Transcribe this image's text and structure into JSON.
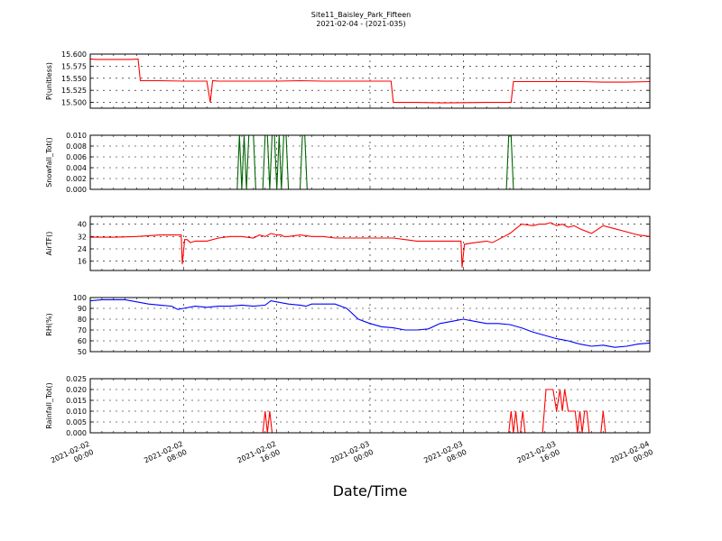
{
  "figure": {
    "title": "Site11_Baisley_Park_Fifteen",
    "subtitle": "2021-02-04 - (2021-035)",
    "xlabel": "Date/Time"
  },
  "chart_data": [
    {
      "type": "line",
      "ylabel": "P(unitless)",
      "ylim": [
        15.488,
        15.6
      ],
      "yticks": [
        "15.600",
        "15.575",
        "15.550",
        "15.525",
        "15.500"
      ],
      "ytick_values": [
        15.6,
        15.575,
        15.55,
        15.525,
        15.5
      ],
      "xlim": [
        0,
        48
      ],
      "grid": true,
      "series": [
        {
          "color": "#ff0000",
          "x": [
            0,
            0.5,
            2,
            3.5,
            4.1,
            4.3,
            6,
            8,
            10,
            10.3,
            10.5,
            11,
            13,
            16,
            18,
            20,
            24,
            25.8,
            26,
            28,
            30,
            34,
            36,
            36.1,
            36.3,
            40,
            42,
            44,
            46,
            48
          ],
          "y": [
            15.59,
            15.589,
            15.589,
            15.589,
            15.59,
            15.545,
            15.545,
            15.544,
            15.544,
            15.5,
            15.545,
            15.544,
            15.544,
            15.544,
            15.545,
            15.544,
            15.544,
            15.544,
            15.5,
            15.5,
            15.499,
            15.5,
            15.5,
            15.5,
            15.543,
            15.543,
            15.543,
            15.542,
            15.542,
            15.543
          ]
        }
      ]
    },
    {
      "type": "line",
      "ylabel": "Snowfall_Tot()",
      "ylim": [
        0,
        0.01
      ],
      "yticks": [
        "0.010",
        "0.008",
        "0.006",
        "0.004",
        "0.002",
        "0.000"
      ],
      "ytick_values": [
        0.01,
        0.008,
        0.006,
        0.004,
        0.002,
        0
      ],
      "xlim": [
        0,
        48
      ],
      "grid": true,
      "series": [
        {
          "color": "#006400",
          "x": [
            0,
            12.6,
            12.8,
            13.0,
            13.2,
            13.4,
            13.6,
            13.8,
            14.0,
            14.2,
            14.4,
            14.6,
            14.8,
            15.0,
            15.2,
            15.4,
            15.6,
            15.8,
            16.0,
            16.2,
            16.4,
            16.6,
            16.8,
            17.0,
            17.2,
            17.4,
            17.6,
            17.8,
            18.0,
            18.2,
            18.4,
            18.6,
            18.8,
            35.7,
            35.9,
            36.1,
            36.3,
            48
          ],
          "y": [
            0,
            0,
            0.01,
            0,
            0.01,
            0,
            0.01,
            0.01,
            0.01,
            0,
            0,
            0,
            0,
            0.01,
            0.01,
            0,
            0.01,
            0.01,
            0,
            0.01,
            0,
            0.01,
            0.01,
            0,
            0,
            0,
            0,
            0,
            0,
            0.01,
            0.01,
            0,
            0,
            0,
            0.01,
            0.01,
            0,
            0
          ]
        }
      ]
    },
    {
      "type": "line",
      "ylabel": "AirTF()",
      "ylim": [
        10,
        45
      ],
      "yticks": [
        "40",
        "32",
        "24",
        "16"
      ],
      "ytick_values": [
        40,
        32,
        24,
        16
      ],
      "xlim": [
        0,
        48
      ],
      "grid": true,
      "series": [
        {
          "color": "#ff0000",
          "x": [
            0,
            2,
            4,
            6,
            7.8,
            7.9,
            8.1,
            8.3,
            8.6,
            9,
            9.5,
            10,
            11,
            12,
            13,
            14,
            14.5,
            15,
            15.5,
            16,
            16.4,
            16.6,
            17,
            18,
            19,
            20,
            21,
            22,
            23,
            24,
            25,
            26,
            27,
            28,
            29,
            30,
            31,
            31.8,
            31.9,
            32.1,
            33,
            34,
            34.5,
            35,
            35.5,
            36,
            37,
            38,
            38.5,
            39,
            39.5,
            40,
            40.5,
            41,
            41.5,
            42,
            43,
            44,
            45,
            46,
            47,
            48
          ],
          "y": [
            31.5,
            31.5,
            32,
            33,
            33,
            14,
            30,
            30,
            28,
            29,
            29,
            29,
            31,
            32,
            32,
            31,
            33,
            32,
            34,
            33,
            33,
            32,
            32,
            33,
            32,
            32,
            31,
            31,
            31,
            31,
            31,
            31,
            30,
            29,
            29,
            29,
            29,
            29,
            12,
            27,
            28,
            29,
            28,
            30,
            32,
            34,
            40,
            39,
            40,
            40,
            41,
            39,
            40,
            38,
            39,
            37,
            34,
            39,
            37,
            35,
            33,
            32
          ]
        }
      ]
    },
    {
      "type": "line",
      "ylabel": "RH(%)",
      "ylim": [
        50,
        100
      ],
      "yticks": [
        "100",
        "90",
        "80",
        "70",
        "60",
        "50"
      ],
      "ytick_values": [
        100,
        90,
        80,
        70,
        60,
        50
      ],
      "xlim": [
        0,
        48
      ],
      "grid": true,
      "series": [
        {
          "color": "#0000ff",
          "x": [
            0,
            1,
            2,
            3,
            4,
            5,
            6,
            7,
            7.5,
            8,
            9,
            10,
            11,
            12,
            13,
            14,
            15,
            15.5,
            16,
            17,
            18,
            18.5,
            19,
            20,
            21,
            22,
            23,
            24,
            25,
            26,
            27,
            28,
            29,
            30,
            31,
            32,
            33,
            34,
            35,
            36,
            37,
            38,
            39,
            40,
            40.5,
            41,
            42,
            43,
            44,
            45,
            46,
            47,
            48
          ],
          "y": [
            97,
            98,
            98,
            98,
            96,
            94,
            93,
            92,
            89,
            90,
            92,
            91,
            92,
            92,
            93,
            92,
            93,
            97,
            96,
            94,
            93,
            92,
            94,
            94,
            94,
            90,
            80,
            76,
            73,
            72,
            70,
            70,
            71,
            76,
            78,
            80,
            78,
            76,
            76,
            75,
            72,
            68,
            65,
            62,
            61,
            60,
            57,
            55,
            56,
            54,
            55,
            57,
            58
          ]
        }
      ]
    },
    {
      "type": "line",
      "ylabel": "Rainfall_Tot()",
      "ylim": [
        0,
        0.025
      ],
      "yticks": [
        "0.025",
        "0.020",
        "0.015",
        "0.010",
        "0.005",
        "0.000"
      ],
      "ytick_values": [
        0.025,
        0.02,
        0.015,
        0.01,
        0.005,
        0
      ],
      "xlim": [
        0,
        48
      ],
      "xticks": [
        "2021-02-02 00:00",
        "2021-02-02 08:00",
        "2021-02-02 16:00",
        "2021-02-03 00:00",
        "2021-02-03 08:00",
        "2021-02-03 16:00",
        "2021-02-04 00:00"
      ],
      "xtick_values": [
        0,
        8,
        16,
        24,
        32,
        40,
        48
      ],
      "grid": true,
      "series": [
        {
          "color": "#ff0000",
          "x": [
            0,
            14.8,
            15.0,
            15.2,
            15.4,
            15.6,
            15.8,
            35.9,
            36.1,
            36.3,
            36.5,
            36.7,
            36.9,
            37.1,
            37.3,
            38.8,
            39.1,
            39.4,
            39.7,
            40.0,
            40.3,
            40.5,
            40.7,
            41.0,
            41.3,
            41.6,
            41.8,
            42.0,
            42.2,
            42.4,
            42.6,
            42.8,
            43.0,
            43.8,
            44.0,
            44.2,
            48
          ],
          "y": [
            0,
            0,
            0.01,
            0,
            0.01,
            0,
            0,
            0,
            0.01,
            0,
            0.01,
            0,
            0,
            0.01,
            0,
            0,
            0.02,
            0.02,
            0.02,
            0.01,
            0.02,
            0.01,
            0.02,
            0.01,
            0.01,
            0.01,
            0,
            0.01,
            0,
            0.01,
            0.01,
            0,
            0,
            0,
            0.01,
            0,
            0
          ]
        }
      ]
    }
  ]
}
